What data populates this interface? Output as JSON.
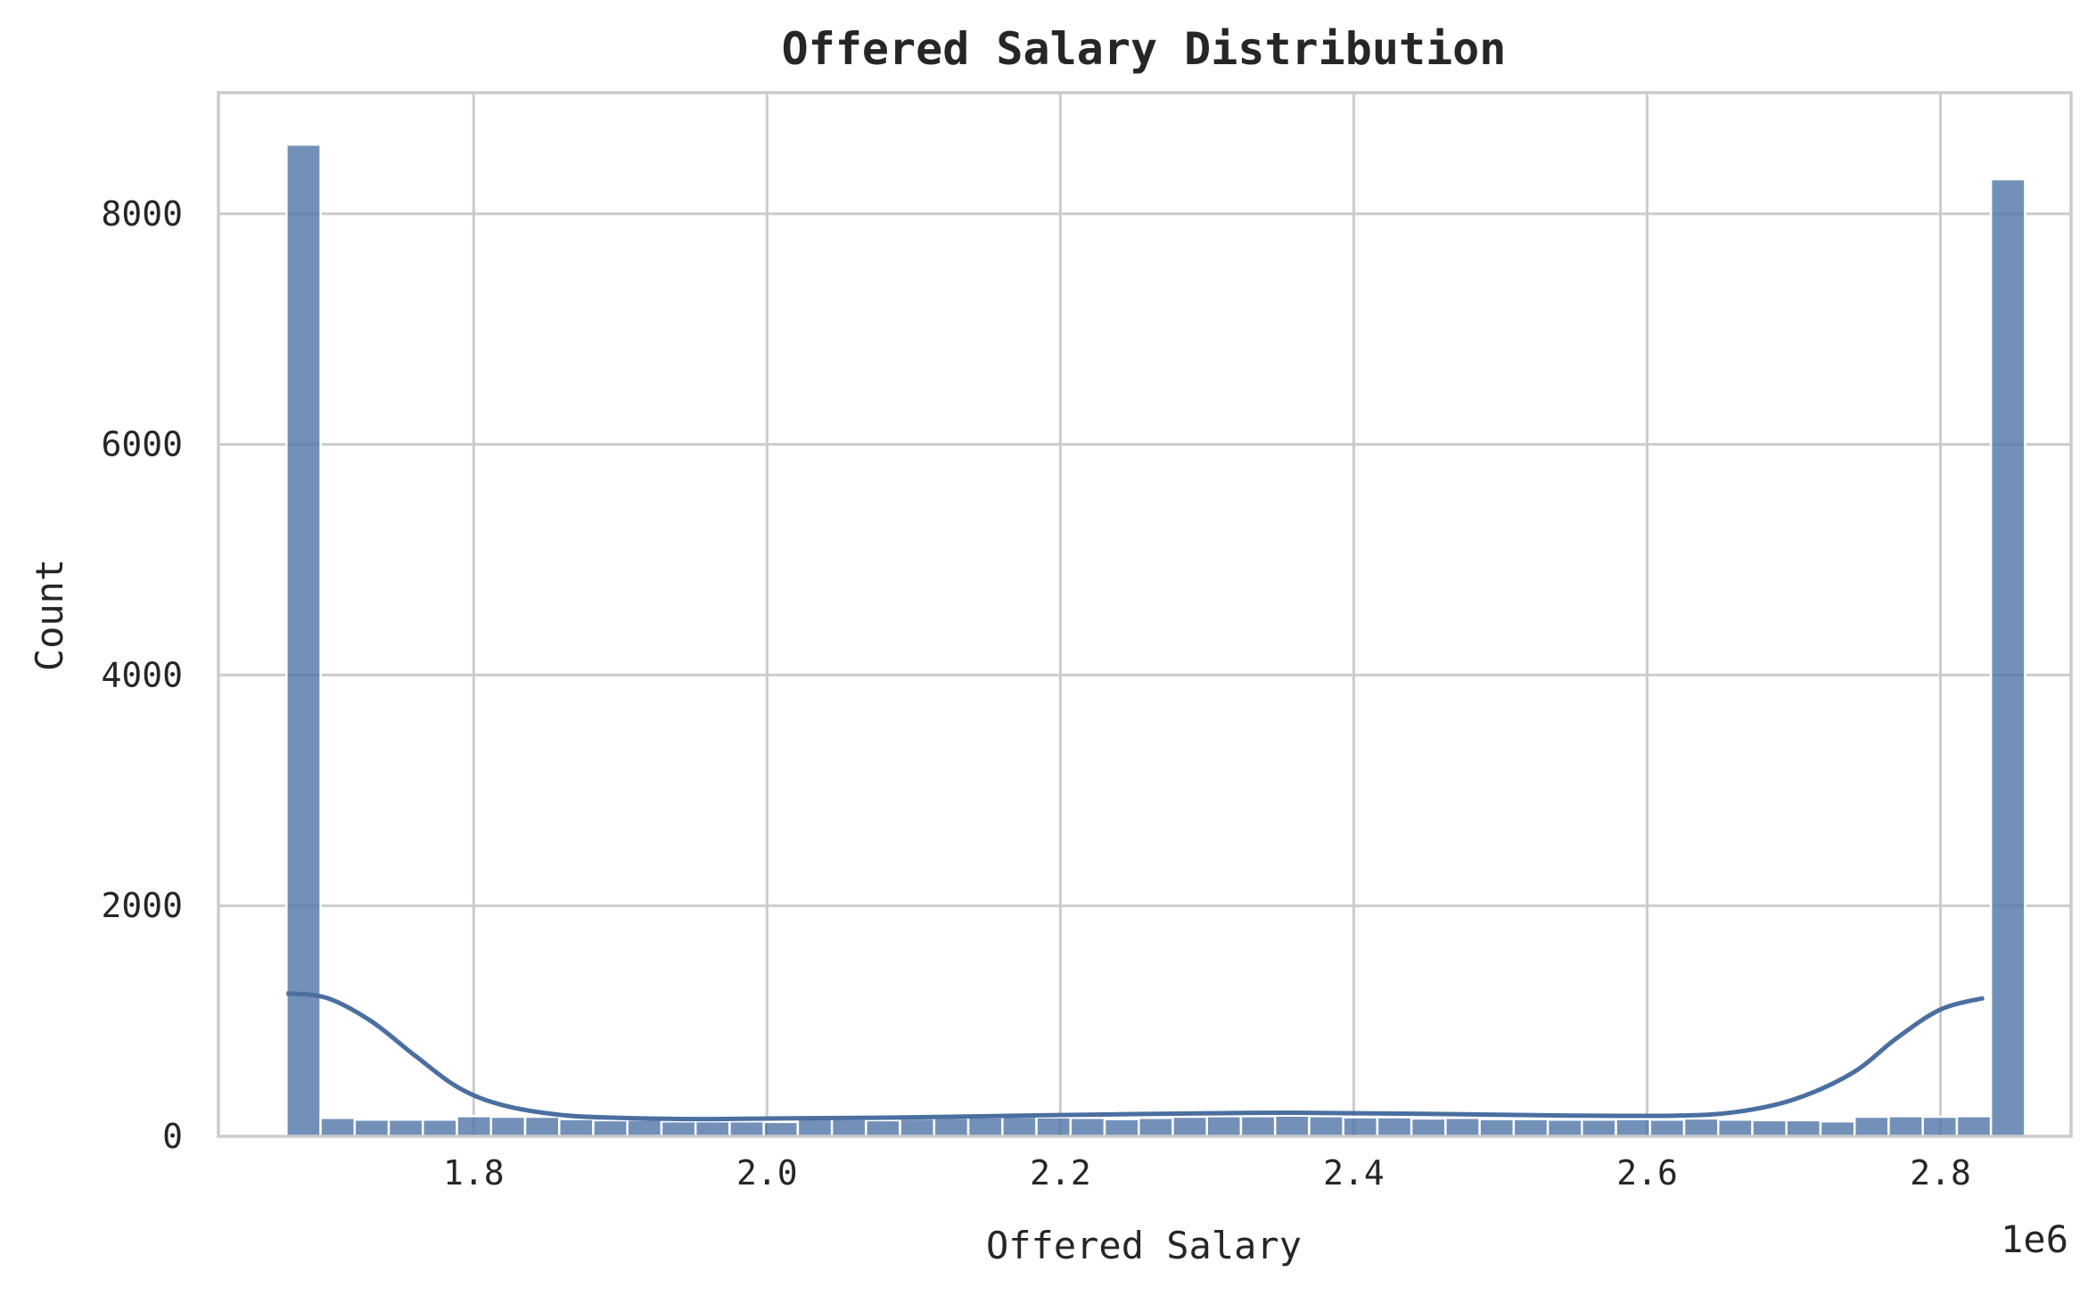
{
  "chart_data": {
    "type": "bar",
    "title": "Offered Salary Distribution",
    "xlabel": "Offered Salary",
    "ylabel": "Count",
    "x_offset_text": "1e6",
    "xlim": [
      1.626,
      2.889
    ],
    "ylim": [
      0,
      9050
    ],
    "x_ticks": [
      1.8,
      2.0,
      2.2,
      2.4,
      2.6,
      2.8
    ],
    "x_tick_labels": [
      "1.8",
      "2.0",
      "2.2",
      "2.4",
      "2.6",
      "2.8"
    ],
    "y_ticks": [
      0,
      2000,
      4000,
      6000,
      8000
    ],
    "y_tick_labels": [
      "0",
      "2000",
      "4000",
      "6000",
      "8000"
    ],
    "grid": true,
    "bar_color": "#4c72a4",
    "kde_color": "#4a6fa0",
    "bin_start": 1.6724,
    "bin_width": 0.02324,
    "values": [
      8600,
      160,
      145,
      145,
      145,
      175,
      170,
      170,
      150,
      140,
      145,
      130,
      130,
      130,
      125,
      150,
      150,
      140,
      155,
      160,
      165,
      170,
      165,
      160,
      150,
      160,
      170,
      175,
      175,
      180,
      175,
      165,
      165,
      155,
      160,
      150,
      150,
      145,
      145,
      150,
      145,
      155,
      145,
      140,
      140,
      130,
      170,
      175,
      170,
      175,
      8300
    ],
    "kde_x": [
      1.6724,
      1.7,
      1.73,
      1.76,
      1.79,
      1.82,
      1.86,
      1.9,
      1.95,
      2.0,
      2.1,
      2.2,
      2.3,
      2.36,
      2.45,
      2.55,
      2.62,
      2.66,
      2.7,
      2.74,
      2.77,
      2.8,
      2.8296
    ],
    "kde_y": [
      1240,
      1200,
      1000,
      700,
      420,
      270,
      185,
      160,
      150,
      155,
      165,
      185,
      200,
      205,
      195,
      180,
      180,
      210,
      320,
      550,
      850,
      1100,
      1200
    ]
  }
}
